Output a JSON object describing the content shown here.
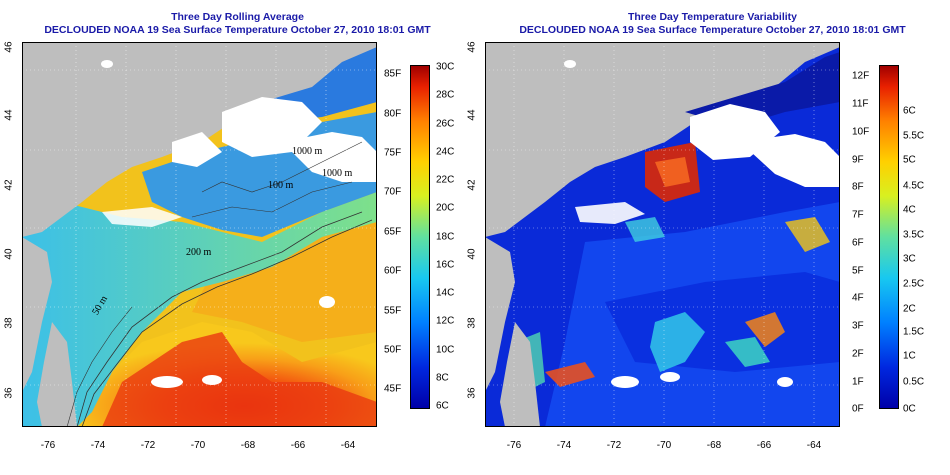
{
  "left_panel": {
    "title": "Three Day Rolling Average",
    "subtitle": "DECLOUDED NOAA 19 Sea Surface Temperature October 27, 2010 18:01 GMT",
    "lat_ticks": [
      "36",
      "38",
      "40",
      "42",
      "44",
      "46"
    ],
    "lon_ticks": [
      "-76",
      "-74",
      "-72",
      "-70",
      "-68",
      "-66",
      "-64"
    ],
    "colorbar_f": [
      "45F",
      "50F",
      "55F",
      "60F",
      "65F",
      "70F",
      "75F",
      "80F",
      "85F"
    ],
    "colorbar_c": [
      "6C",
      "8C",
      "10C",
      "12C",
      "14C",
      "16C",
      "18C",
      "20C",
      "22C",
      "24C",
      "26C",
      "28C",
      "30C"
    ],
    "contour_labels": [
      "1000 m",
      "100 m",
      "200 m",
      "50 m",
      "1000 m"
    ]
  },
  "right_panel": {
    "title": "Three Day Temperature Variability",
    "subtitle": "DECLOUDED NOAA 19 Sea Surface Temperature October 27, 2010 18:01 GMT",
    "lat_ticks": [
      "36",
      "38",
      "40",
      "42",
      "44",
      "46"
    ],
    "lon_ticks": [
      "-76",
      "-74",
      "-72",
      "-70",
      "-68",
      "-66",
      "-64"
    ],
    "colorbar_f": [
      "0F",
      "1F",
      "2F",
      "3F",
      "4F",
      "5F",
      "6F",
      "7F",
      "8F",
      "9F",
      "10F",
      "11F",
      "12F"
    ],
    "colorbar_c": [
      "0C",
      "0.5C",
      "1C",
      "1.5C",
      "2C",
      "2.5C",
      "3C",
      "3.5C",
      "4C",
      "4.5C",
      "5C",
      "5.5C",
      "6C"
    ]
  },
  "colors": {
    "title_blue": "#1a1aa8",
    "land_gray": "#bebebe"
  }
}
